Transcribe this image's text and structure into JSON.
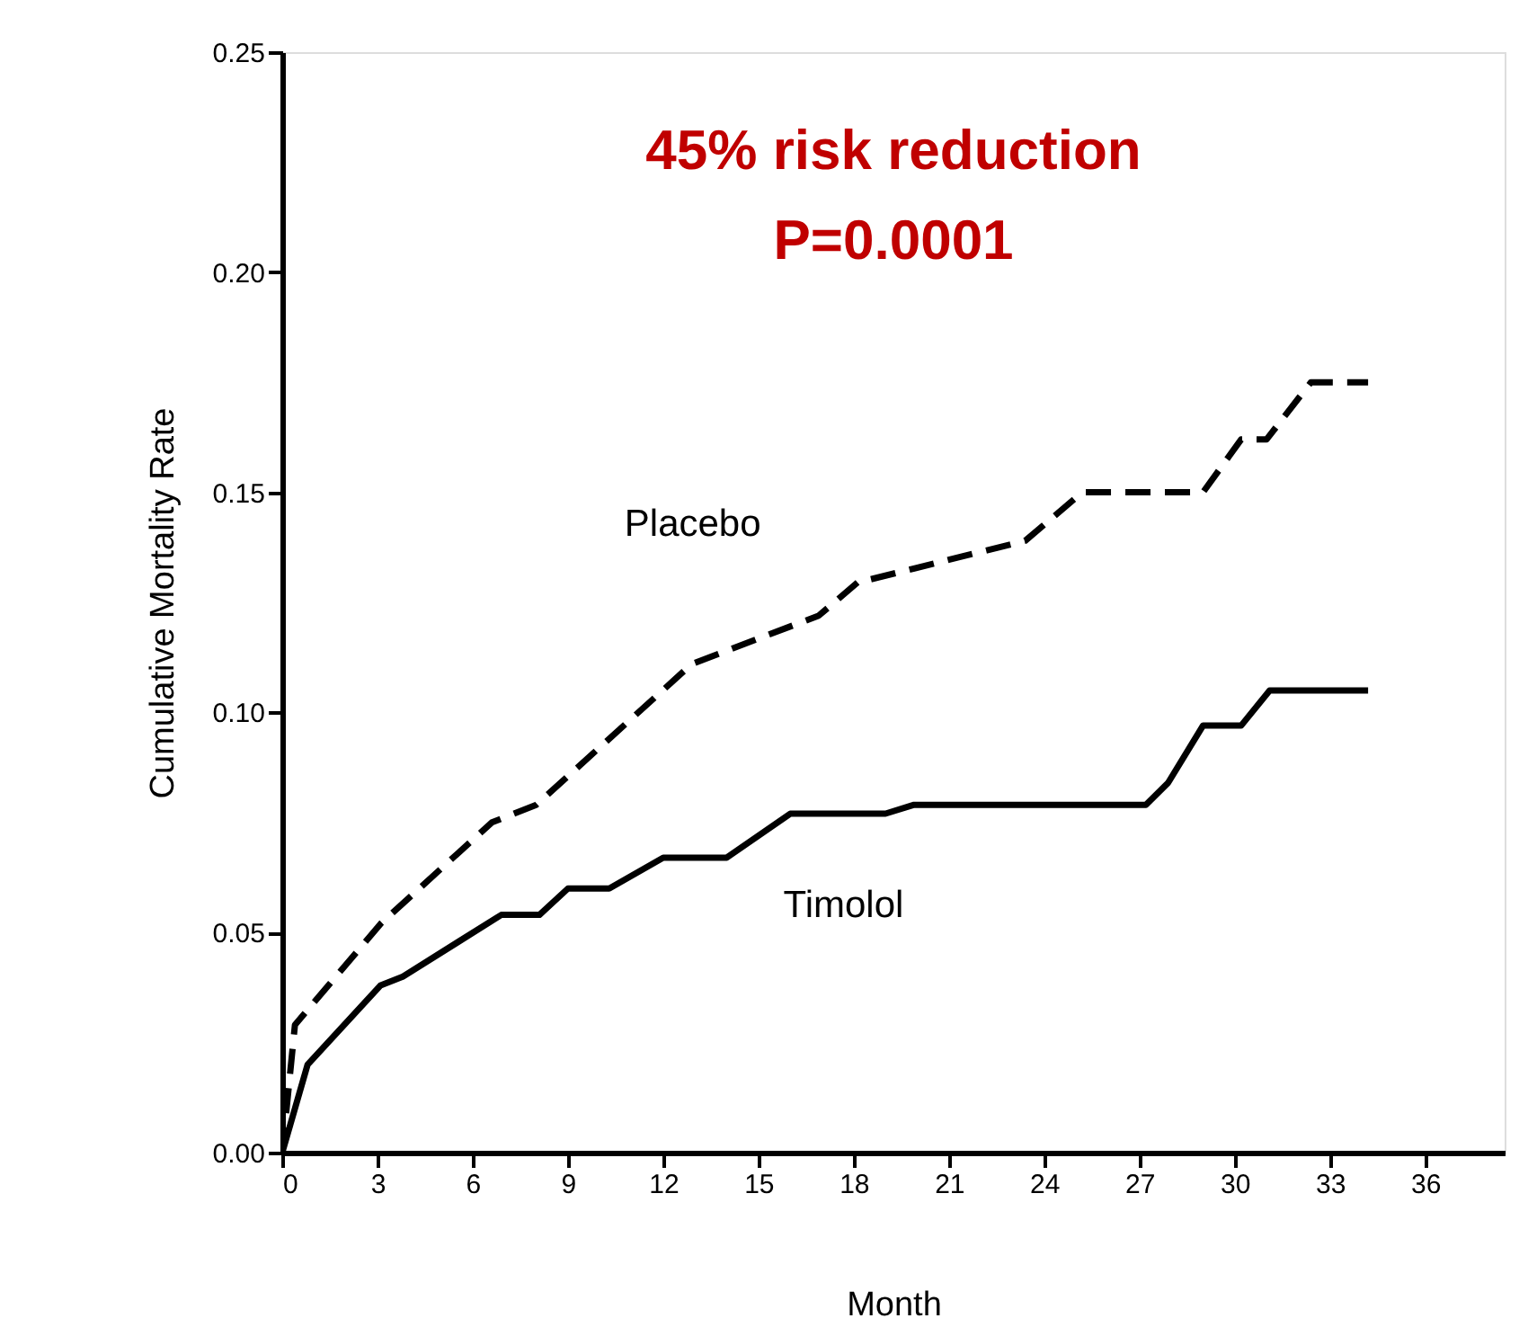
{
  "chart_data": {
    "type": "line",
    "xlabel": "Month",
    "ylabel": "Cumulative Mortality Rate",
    "annotations": [
      "45% risk reduction",
      "P=0.0001"
    ],
    "xlim": [
      0,
      38.5
    ],
    "xticks": [
      0,
      3,
      6,
      9,
      12,
      15,
      18,
      21,
      24,
      27,
      30,
      33,
      36
    ],
    "ylim": [
      0,
      0.25
    ],
    "yticks": [
      {
        "value": 0,
        "label": "0.00"
      },
      {
        "value": 0.05,
        "label": "0.05"
      },
      {
        "value": 0.1,
        "label": "0.10"
      },
      {
        "value": 0.15,
        "label": "0.15"
      },
      {
        "value": 0.2,
        "label": "0.20"
      },
      {
        "value": 0.25,
        "label": "0.25"
      }
    ],
    "grid": false,
    "legend": false,
    "marker": "none",
    "series": [
      {
        "name": "Placebo",
        "color": "#000000",
        "line_style": "dashed",
        "x": [
          0,
          0.4,
          3.1,
          6.6,
          8,
          12.9,
          16.9,
          18.2,
          18.4,
          23.4,
          25.2,
          29.0,
          30.2,
          31.0,
          32.4,
          34.2
        ],
        "values": [
          0,
          0.029,
          0.052,
          0.075,
          0.079,
          0.111,
          0.122,
          0.13,
          0.13,
          0.139,
          0.15,
          0.15,
          0.162,
          0.162,
          0.175,
          0.175
        ]
      },
      {
        "name": "Timolol",
        "color": "#000000",
        "line_style": "solid",
        "x": [
          0,
          0.8,
          3.1,
          3.8,
          6.9,
          8.1,
          9.0,
          10.3,
          12,
          14,
          16,
          19,
          19.9,
          27.2,
          27.9,
          29,
          30.2,
          31.1,
          34.2
        ],
        "values": [
          0,
          0.02,
          0.038,
          0.04,
          0.054,
          0.054,
          0.06,
          0.06,
          0.067,
          0.067,
          0.077,
          0.077,
          0.079,
          0.079,
          0.084,
          0.097,
          0.097,
          0.105,
          0.105
        ]
      }
    ]
  }
}
